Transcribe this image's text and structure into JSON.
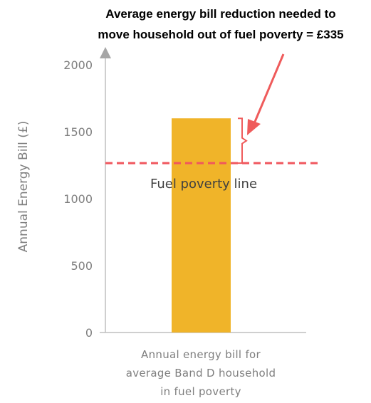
{
  "chart_data": {
    "type": "bar",
    "title_lines": [
      "Average energy bill reduction needed to",
      "move household out of fuel poverty = £335"
    ],
    "ylabel": "Annual Energy Bill (£)",
    "ylim": [
      0,
      2000
    ],
    "yticks": [
      "0",
      "500",
      "1000",
      "1500",
      "2000"
    ],
    "categories": [
      "Annual energy bill  for average Band D household in fuel poverty"
    ],
    "category_label_lines": [
      "Annual energy bill  for",
      "average Band D household",
      "in fuel poverty"
    ],
    "values": [
      1600
    ],
    "reference_line": {
      "label": "Fuel poverty line",
      "value": 1265
    },
    "gap_value": 335,
    "grid": false,
    "legend": "none"
  },
  "colors": {
    "bar": "#f0b429",
    "reference": "#f0565d",
    "arrow": "#ef5b5b",
    "axis": "#bfbfbf",
    "text_muted": "#7f7f7f"
  }
}
